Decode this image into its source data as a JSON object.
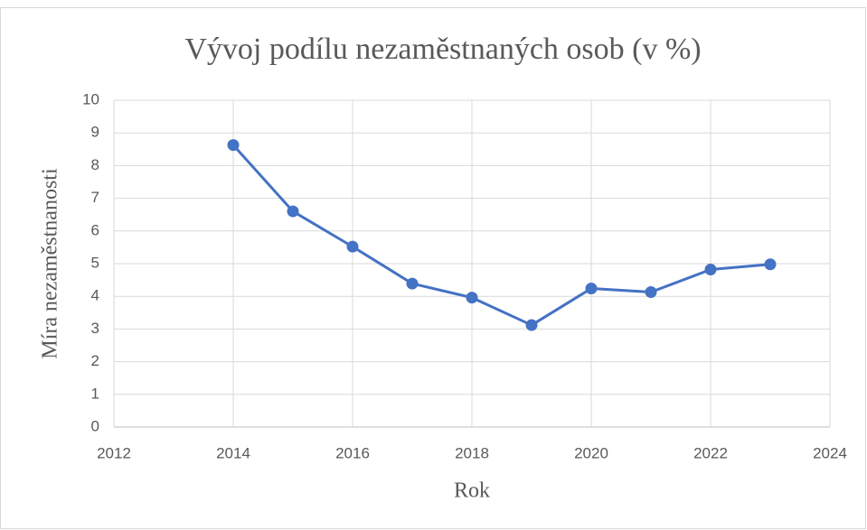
{
  "chart_data": {
    "type": "line",
    "title": "Vývoj podílu nezaměstnaných osob (v %)",
    "xlabel": "Rok",
    "ylabel": "Míra nezaměstnanosti",
    "x": [
      2014,
      2015,
      2016,
      2017,
      2018,
      2019,
      2020,
      2021,
      2022,
      2023
    ],
    "series": [
      {
        "name": "Míra nezaměstnanosti",
        "color": "#4472c4",
        "values": [
          8.63,
          6.6,
          5.52,
          4.39,
          3.96,
          3.12,
          4.24,
          4.13,
          4.82,
          4.98
        ]
      }
    ],
    "xlim": [
      2012,
      2024
    ],
    "xticks": [
      2012,
      2014,
      2016,
      2018,
      2020,
      2022,
      2024
    ],
    "ylim": [
      0,
      10
    ],
    "yticks": [
      0,
      1,
      2,
      3,
      4,
      5,
      6,
      7,
      8,
      9,
      10
    ],
    "grid": true,
    "markers": true
  }
}
